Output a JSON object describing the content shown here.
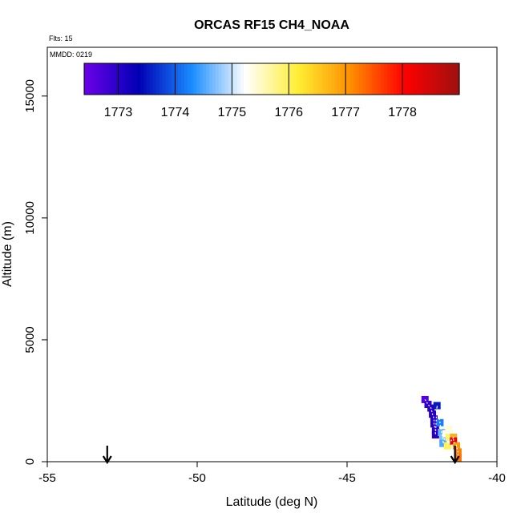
{
  "chart_data": {
    "type": "scatter",
    "title": "ORCAS RF15 CH4_NOAA",
    "flights_label": "Flts: 15",
    "date_label": "MMDD: 0219",
    "xlabel": "Latitude (deg N)",
    "ylabel": "Altitude (m)",
    "xlim": [
      -55,
      -40
    ],
    "ylim": [
      0,
      17000
    ],
    "xticks": [
      -55,
      -50,
      -45,
      -40
    ],
    "yticks": [
      0,
      5000,
      10000,
      15000
    ],
    "grid": false,
    "colorbar": {
      "placement": "top-left inside plot",
      "range": [
        1772.4,
        1779.0
      ],
      "ticks": [
        1773,
        1774,
        1775,
        1776,
        1777,
        1778
      ],
      "colors": [
        "#6a00e8",
        "#0000b4",
        "#1a8cff",
        "#ffffff",
        "#ffee33",
        "#ff8c00",
        "#ff0000",
        "#a01010"
      ]
    },
    "arrows": [
      {
        "lat": -53.0,
        "direction": "down"
      },
      {
        "lat": -41.4,
        "direction": "down"
      }
    ],
    "points": [
      {
        "lat": -42.4,
        "alt": 2550,
        "ch4": 1772.6
      },
      {
        "lat": -42.3,
        "alt": 2350,
        "ch4": 1772.9
      },
      {
        "lat": -42.2,
        "alt": 2200,
        "ch4": 1773.0
      },
      {
        "lat": -42.15,
        "alt": 1950,
        "ch4": 1773.0
      },
      {
        "lat": -42.1,
        "alt": 1750,
        "ch4": 1773.0
      },
      {
        "lat": -42.1,
        "alt": 1550,
        "ch4": 1773.0
      },
      {
        "lat": -42.05,
        "alt": 1300,
        "ch4": 1773.0
      },
      {
        "lat": -42.05,
        "alt": 1100,
        "ch4": 1773.0
      },
      {
        "lat": -42.0,
        "alt": 2300,
        "ch4": 1773.5
      },
      {
        "lat": -41.9,
        "alt": 1600,
        "ch4": 1774.2
      },
      {
        "lat": -41.85,
        "alt": 1200,
        "ch4": 1774.6
      },
      {
        "lat": -41.8,
        "alt": 950,
        "ch4": 1774.7
      },
      {
        "lat": -41.8,
        "alt": 750,
        "ch4": 1774.5
      },
      {
        "lat": -41.7,
        "alt": 1150,
        "ch4": 1775.3
      },
      {
        "lat": -41.6,
        "alt": 1350,
        "ch4": 1775.4
      },
      {
        "lat": -41.6,
        "alt": 1000,
        "ch4": 1775.9
      },
      {
        "lat": -41.65,
        "alt": 650,
        "ch4": 1776.0
      },
      {
        "lat": -41.45,
        "alt": 1000,
        "ch4": 1776.8
      },
      {
        "lat": -41.45,
        "alt": 850,
        "ch4": 1778.3
      },
      {
        "lat": -41.35,
        "alt": 650,
        "ch4": 1777.0
      },
      {
        "lat": -41.3,
        "alt": 400,
        "ch4": 1777.2
      },
      {
        "lat": -41.3,
        "alt": 150,
        "ch4": 1777.3
      }
    ]
  }
}
